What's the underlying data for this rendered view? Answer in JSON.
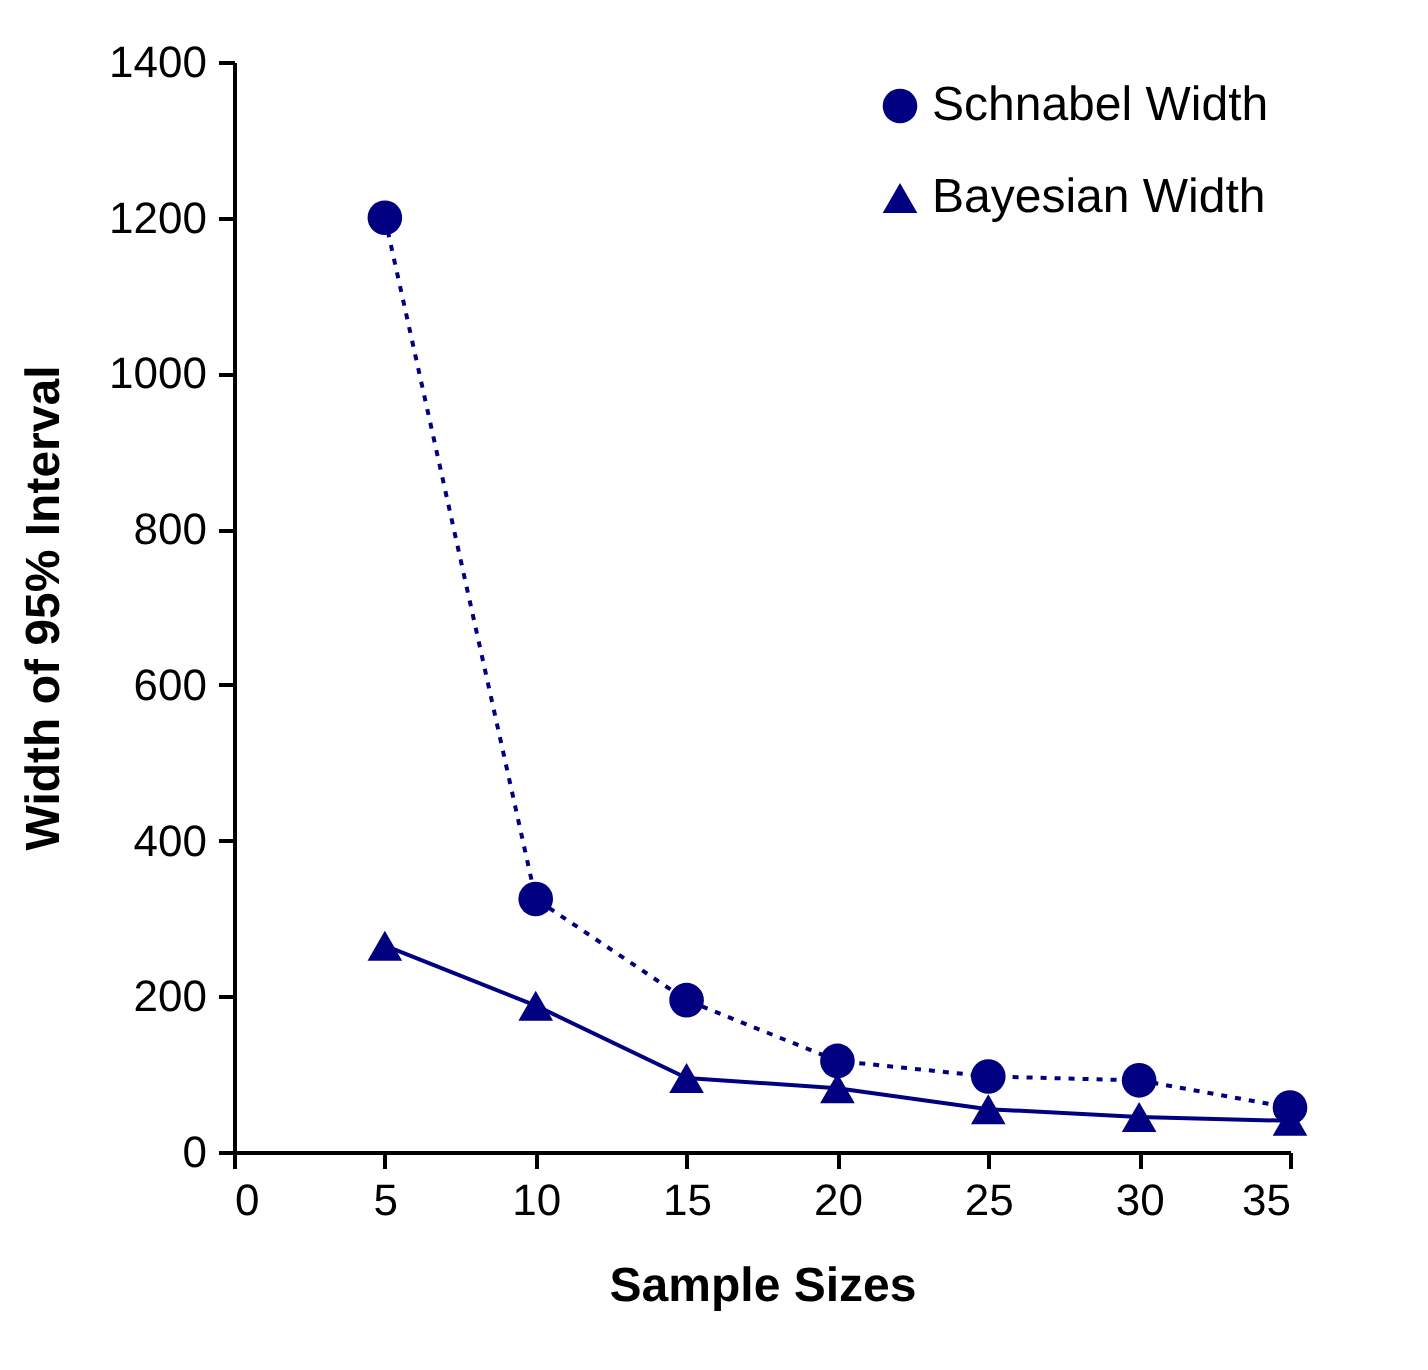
{
  "chart_data": {
    "type": "line",
    "xlabel": "Sample Sizes",
    "ylabel": "Width of 95% Interval",
    "x": [
      5,
      10,
      15,
      20,
      25,
      30,
      35
    ],
    "series": [
      {
        "name": "Schnabel Width",
        "color": "#000080",
        "marker": "circle",
        "line_style": "dotted",
        "values": [
          1200,
          325,
          195,
          117,
          97,
          92,
          57
        ]
      },
      {
        "name": "Bayesian Width",
        "color": "#000080",
        "marker": "triangle",
        "line_style": "solid",
        "values": [
          265,
          188,
          95,
          82,
          55,
          45,
          40
        ]
      }
    ],
    "xlim": [
      0,
      35
    ],
    "xticks": [
      0,
      5,
      10,
      15,
      20,
      25,
      30,
      35
    ],
    "ylim": [
      0,
      1400
    ],
    "yticks": [
      0,
      200,
      400,
      600,
      800,
      1000,
      1200,
      1400
    ],
    "grid": false,
    "legend": "top right"
  }
}
